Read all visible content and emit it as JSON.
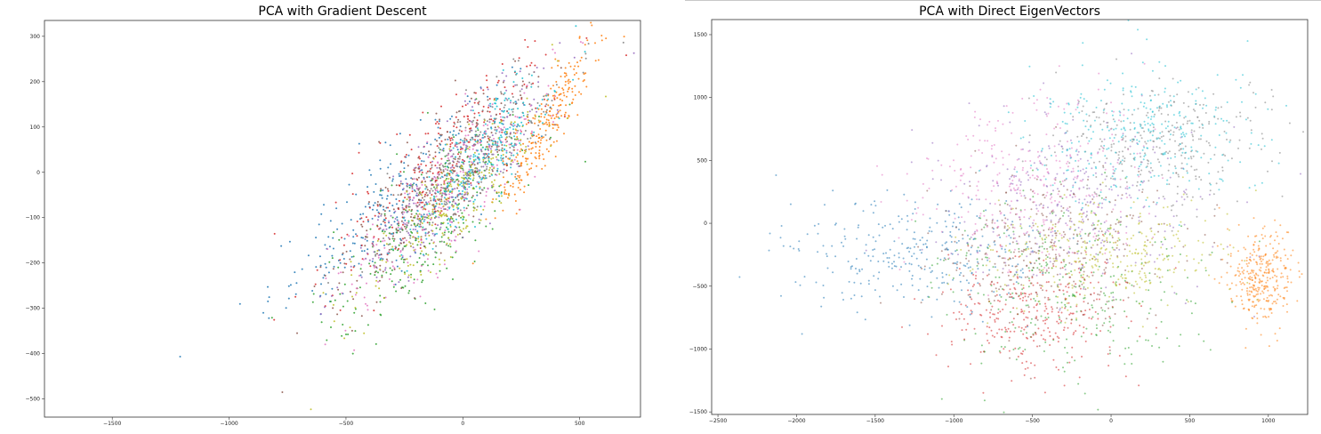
{
  "chart_data": [
    {
      "type": "scatter",
      "title": "PCA with Gradient Descent",
      "xlabel": "",
      "ylabel": "",
      "xlim": [
        -1790,
        760
      ],
      "ylim": [
        -540,
        335
      ],
      "x_ticks": [
        -1500,
        -1000,
        -500,
        0,
        500
      ],
      "y_ticks": [
        300,
        200,
        100,
        0,
        -100,
        -200,
        -300,
        -400,
        -500
      ],
      "grid": false,
      "legend": "none",
      "point_count_per_class": 260,
      "series": [
        {
          "color": "#1f77b4",
          "center": [
            -300,
            -70
          ],
          "spread": [
            260,
            55
          ],
          "corr": 0.85
        },
        {
          "color": "#ff7f0e",
          "center": [
            360,
            110
          ],
          "spread": [
            110,
            45
          ],
          "corr": 0.9
        },
        {
          "color": "#2ca02c",
          "center": [
            -150,
            -120
          ],
          "spread": [
            230,
            60
          ],
          "corr": 0.8
        },
        {
          "color": "#d62728",
          "center": [
            -80,
            20
          ],
          "spread": [
            230,
            55
          ],
          "corr": 0.85
        },
        {
          "color": "#9467bd",
          "center": [
            -60,
            -20
          ],
          "spread": [
            220,
            55
          ],
          "corr": 0.85
        },
        {
          "color": "#8c564b",
          "center": [
            -120,
            -30
          ],
          "spread": [
            220,
            55
          ],
          "corr": 0.85
        },
        {
          "color": "#e377c2",
          "center": [
            -60,
            -40
          ],
          "spread": [
            220,
            55
          ],
          "corr": 0.85
        },
        {
          "color": "#7f7f7f",
          "center": [
            30,
            20
          ],
          "spread": [
            200,
            50
          ],
          "corr": 0.85
        },
        {
          "color": "#bcbd22",
          "center": [
            -20,
            -50
          ],
          "spread": [
            200,
            50
          ],
          "corr": 0.85
        },
        {
          "color": "#17becf",
          "center": [
            60,
            20
          ],
          "spread": [
            170,
            45
          ],
          "corr": 0.85
        }
      ]
    },
    {
      "type": "scatter",
      "title": "PCA with Direct EigenVectors",
      "xlabel": "",
      "ylabel": "",
      "xlim": [
        -2540,
        1250
      ],
      "ylim": [
        -1520,
        1620
      ],
      "x_ticks": [
        -2500,
        -2000,
        -1500,
        -1000,
        -500,
        0,
        500,
        1000
      ],
      "y_ticks": [
        1500,
        1000,
        500,
        0,
        -500,
        -1000,
        -1500
      ],
      "grid": false,
      "legend": "none",
      "point_count_per_class": 320,
      "series": [
        {
          "color": "#1f77b4",
          "center": [
            -1200,
            -250
          ],
          "spread": [
            420,
            220
          ],
          "corr": 0
        },
        {
          "color": "#ff7f0e",
          "center": [
            950,
            -450
          ],
          "spread": [
            100,
            200
          ],
          "corr": 0
        },
        {
          "color": "#2ca02c",
          "center": [
            -300,
            -500
          ],
          "spread": [
            450,
            350
          ],
          "corr": 0
        },
        {
          "color": "#d62728",
          "center": [
            -500,
            -700
          ],
          "spread": [
            320,
            250
          ],
          "corr": 0
        },
        {
          "color": "#9467bd",
          "center": [
            -200,
            200
          ],
          "spread": [
            420,
            350
          ],
          "corr": 0
        },
        {
          "color": "#8c564b",
          "center": [
            -350,
            -200
          ],
          "spread": [
            380,
            300
          ],
          "corr": 0
        },
        {
          "color": "#e377c2",
          "center": [
            -500,
            300
          ],
          "spread": [
            380,
            350
          ],
          "corr": 0
        },
        {
          "color": "#7f7f7f",
          "center": [
            300,
            650
          ],
          "spread": [
            320,
            250
          ],
          "corr": 0
        },
        {
          "color": "#bcbd22",
          "center": [
            -50,
            -250
          ],
          "spread": [
            400,
            200
          ],
          "corr": 0
        },
        {
          "color": "#17becf",
          "center": [
            200,
            700
          ],
          "spread": [
            330,
            270
          ],
          "corr": 0
        }
      ]
    }
  ]
}
